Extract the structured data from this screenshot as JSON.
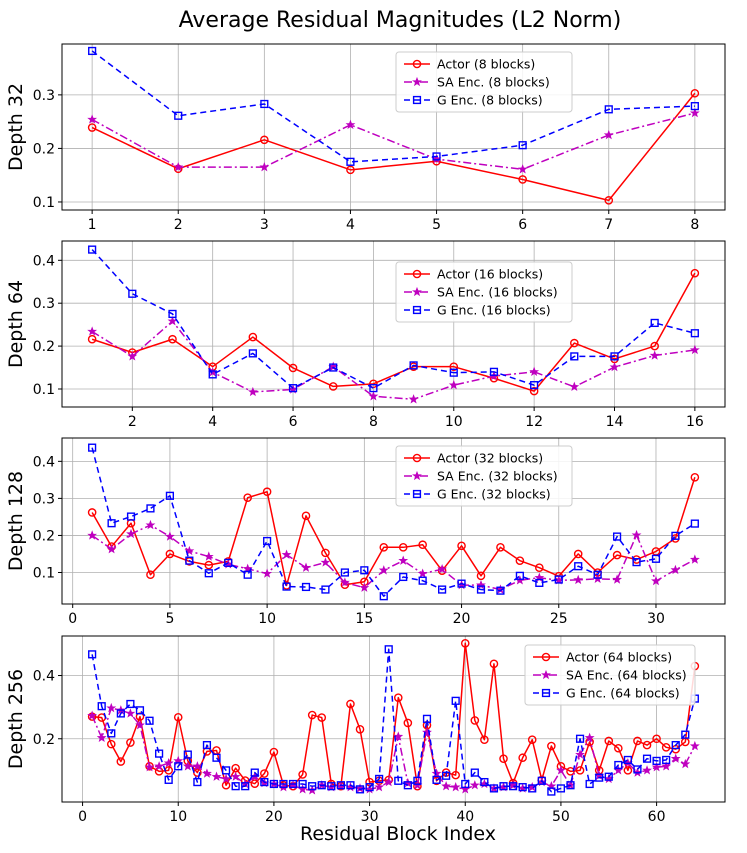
{
  "title": "Average Residual Magnitudes (L2 Norm)",
  "xlabel": "Residual Block Index",
  "colors": {
    "actor": "#ff0000",
    "sa": "#bf00bf",
    "g": "#0000ff",
    "grid": "#b0b0b0"
  },
  "chart_data": [
    {
      "type": "line",
      "ylabel": "Depth 32",
      "xlim": [
        0.65,
        8.35
      ],
      "ylim": [
        0.085,
        0.395
      ],
      "xticks": [
        1,
        2,
        3,
        4,
        5,
        6,
        7,
        8
      ],
      "yticks": [
        0.1,
        0.2,
        0.3
      ],
      "legend": "top-center",
      "series": [
        {
          "name": "Actor (8 blocks)",
          "x": [
            1,
            2,
            3,
            4,
            5,
            6,
            7,
            8
          ],
          "values": [
            0.239,
            0.162,
            0.216,
            0.16,
            0.176,
            0.142,
            0.103,
            0.303
          ]
        },
        {
          "name": "SA Enc. (8 blocks)",
          "x": [
            1,
            2,
            3,
            4,
            5,
            6,
            7,
            8
          ],
          "values": [
            0.254,
            0.165,
            0.165,
            0.244,
            0.18,
            0.161,
            0.225,
            0.266
          ]
        },
        {
          "name": "G Enc. (8 blocks)",
          "x": [
            1,
            2,
            3,
            4,
            5,
            6,
            7,
            8
          ],
          "values": [
            0.382,
            0.261,
            0.283,
            0.175,
            0.185,
            0.206,
            0.273,
            0.279
          ]
        }
      ]
    },
    {
      "type": "line",
      "ylabel": "Depth 64",
      "xlim": [
        0.25,
        16.75
      ],
      "ylim": [
        0.058,
        0.445
      ],
      "xticks": [
        2,
        4,
        6,
        8,
        10,
        12,
        14,
        16
      ],
      "yticks": [
        0.1,
        0.2,
        0.3,
        0.4
      ],
      "legend": "top-center",
      "series": [
        {
          "name": "Actor (16 blocks)",
          "x": [
            1,
            2,
            3,
            4,
            5,
            6,
            7,
            8,
            9,
            10,
            11,
            12,
            13,
            14,
            15,
            16
          ],
          "values": [
            0.216,
            0.185,
            0.216,
            0.152,
            0.221,
            0.149,
            0.106,
            0.112,
            0.152,
            0.152,
            0.125,
            0.095,
            0.207,
            0.17,
            0.2,
            0.37
          ]
        },
        {
          "name": "SA Enc. (16 blocks)",
          "x": [
            1,
            2,
            3,
            4,
            5,
            6,
            7,
            8,
            9,
            10,
            11,
            12,
            13,
            14,
            15,
            16
          ],
          "values": [
            0.234,
            0.176,
            0.258,
            0.139,
            0.093,
            0.099,
            0.152,
            0.083,
            0.076,
            0.109,
            0.13,
            0.14,
            0.105,
            0.151,
            0.178,
            0.191
          ]
        },
        {
          "name": "G Enc. (16 blocks)",
          "x": [
            1,
            2,
            3,
            4,
            5,
            6,
            7,
            8,
            9,
            10,
            11,
            12,
            13,
            14,
            15,
            16
          ],
          "values": [
            0.425,
            0.322,
            0.275,
            0.134,
            0.183,
            0.102,
            0.15,
            0.102,
            0.155,
            0.138,
            0.14,
            0.109,
            0.176,
            0.176,
            0.254,
            0.23
          ]
        }
      ]
    },
    {
      "type": "line",
      "ylabel": "Depth 128",
      "xlim": [
        -0.55,
        33.55
      ],
      "ylim": [
        0.015,
        0.463
      ],
      "xticks": [
        0,
        5,
        10,
        15,
        20,
        25,
        30
      ],
      "yticks": [
        0.1,
        0.2,
        0.3,
        0.4
      ],
      "legend": "top-center",
      "series": [
        {
          "name": "Actor (32 blocks)",
          "x": [
            1,
            2,
            3,
            4,
            5,
            6,
            7,
            8,
            9,
            10,
            11,
            12,
            13,
            14,
            15,
            16,
            17,
            18,
            19,
            20,
            21,
            22,
            23,
            24,
            25,
            26,
            27,
            28,
            29,
            30,
            31,
            32
          ],
          "values": [
            0.262,
            0.17,
            0.233,
            0.094,
            0.15,
            0.13,
            0.12,
            0.13,
            0.302,
            0.318,
            0.065,
            0.253,
            0.153,
            0.067,
            0.075,
            0.168,
            0.168,
            0.175,
            0.105,
            0.172,
            0.091,
            0.168,
            0.132,
            0.113,
            0.09,
            0.15,
            0.1,
            0.147,
            0.135,
            0.157,
            0.192,
            0.357
          ]
        },
        {
          "name": "SA Enc. (32 blocks)",
          "x": [
            1,
            2,
            3,
            4,
            5,
            6,
            7,
            8,
            9,
            10,
            11,
            12,
            13,
            14,
            15,
            16,
            17,
            18,
            19,
            20,
            21,
            22,
            23,
            24,
            25,
            26,
            27,
            28,
            29,
            30,
            31,
            32
          ],
          "values": [
            0.2,
            0.163,
            0.204,
            0.228,
            0.197,
            0.158,
            0.143,
            0.122,
            0.11,
            0.097,
            0.148,
            0.113,
            0.127,
            0.073,
            0.059,
            0.106,
            0.132,
            0.097,
            0.109,
            0.066,
            0.066,
            0.054,
            0.079,
            0.086,
            0.079,
            0.08,
            0.083,
            0.081,
            0.201,
            0.077,
            0.107,
            0.135
          ]
        },
        {
          "name": "G Enc. (32 blocks)",
          "x": [
            1,
            2,
            3,
            4,
            5,
            6,
            7,
            8,
            9,
            10,
            11,
            12,
            13,
            14,
            15,
            16,
            17,
            18,
            19,
            20,
            21,
            22,
            23,
            24,
            25,
            26,
            27,
            28,
            29,
            30,
            31,
            32
          ],
          "values": [
            0.437,
            0.233,
            0.251,
            0.273,
            0.307,
            0.132,
            0.098,
            0.126,
            0.094,
            0.185,
            0.062,
            0.061,
            0.054,
            0.1,
            0.106,
            0.036,
            0.088,
            0.078,
            0.054,
            0.07,
            0.054,
            0.051,
            0.091,
            0.072,
            0.081,
            0.117,
            0.094,
            0.197,
            0.128,
            0.137,
            0.199,
            0.232
          ]
        }
      ]
    },
    {
      "type": "line",
      "ylabel": "Depth 256",
      "xlim": [
        -2.15,
        67.15
      ],
      "ylim": [
        0.0,
        0.525
      ],
      "xticks": [
        0,
        10,
        20,
        30,
        40,
        50,
        60
      ],
      "yticks": [
        0.2,
        0.4
      ],
      "legend": "top-right",
      "series": [
        {
          "name": "Actor (64 blocks)",
          "x": [
            1,
            2,
            3,
            4,
            5,
            6,
            7,
            8,
            9,
            10,
            11,
            12,
            13,
            14,
            15,
            16,
            17,
            18,
            19,
            20,
            21,
            22,
            23,
            24,
            25,
            26,
            27,
            28,
            29,
            30,
            31,
            32,
            33,
            34,
            35,
            36,
            37,
            38,
            39,
            40,
            41,
            42,
            43,
            44,
            45,
            46,
            47,
            48,
            49,
            50,
            51,
            52,
            53,
            54,
            55,
            56,
            57,
            58,
            59,
            60,
            61,
            62,
            63,
            64
          ],
          "values": [
            0.27,
            0.267,
            0.183,
            0.128,
            0.188,
            0.27,
            0.113,
            0.097,
            0.1,
            0.268,
            0.13,
            0.093,
            0.16,
            0.163,
            0.053,
            0.107,
            0.068,
            0.058,
            0.09,
            0.158,
            0.053,
            0.05,
            0.087,
            0.275,
            0.267,
            0.057,
            0.05,
            0.31,
            0.23,
            0.063,
            0.067,
            0.07,
            0.33,
            0.25,
            0.05,
            0.243,
            0.067,
            0.093,
            0.085,
            0.502,
            0.258,
            0.197,
            0.437,
            0.137,
            0.06,
            0.14,
            0.197,
            0.07,
            0.177,
            0.113,
            0.097,
            0.1,
            0.19,
            0.1,
            0.193,
            0.17,
            0.1,
            0.193,
            0.18,
            0.2,
            0.173,
            0.167,
            0.19,
            0.43
          ]
        },
        {
          "name": "SA Enc. (64 blocks)",
          "x": [
            1,
            2,
            3,
            4,
            5,
            6,
            7,
            8,
            9,
            10,
            11,
            12,
            13,
            14,
            15,
            16,
            17,
            18,
            19,
            20,
            21,
            22,
            23,
            24,
            25,
            26,
            27,
            28,
            29,
            30,
            31,
            32,
            33,
            34,
            35,
            36,
            37,
            38,
            39,
            40,
            41,
            42,
            43,
            44,
            45,
            46,
            47,
            48,
            49,
            50,
            51,
            52,
            53,
            54,
            55,
            56,
            57,
            58,
            59,
            60,
            61,
            62,
            63,
            64
          ],
          "values": [
            0.273,
            0.203,
            0.297,
            0.29,
            0.28,
            0.243,
            0.11,
            0.113,
            0.123,
            0.13,
            0.113,
            0.113,
            0.09,
            0.08,
            0.073,
            0.08,
            0.057,
            0.08,
            0.06,
            0.057,
            0.047,
            0.053,
            0.04,
            0.037,
            0.053,
            0.047,
            0.05,
            0.047,
            0.043,
            0.04,
            0.047,
            0.063,
            0.207,
            0.06,
            0.053,
            0.22,
            0.09,
            0.05,
            0.047,
            0.04,
            0.053,
            0.057,
            0.043,
            0.047,
            0.053,
            0.043,
            0.047,
            0.063,
            0.05,
            0.1,
            0.053,
            0.15,
            0.203,
            0.083,
            0.073,
            0.1,
            0.123,
            0.093,
            0.1,
            0.11,
            0.113,
            0.137,
            0.12,
            0.177
          ]
        },
        {
          "name": "G Enc. (64 blocks)",
          "x": [
            1,
            2,
            3,
            4,
            5,
            6,
            7,
            8,
            9,
            10,
            11,
            12,
            13,
            14,
            15,
            16,
            17,
            18,
            19,
            20,
            21,
            22,
            23,
            24,
            25,
            26,
            27,
            28,
            29,
            30,
            31,
            32,
            33,
            34,
            35,
            36,
            37,
            38,
            39,
            40,
            41,
            42,
            43,
            44,
            45,
            46,
            47,
            48,
            49,
            50,
            51,
            52,
            53,
            54,
            55,
            56,
            57,
            58,
            59,
            60,
            61,
            62,
            63,
            64
          ],
          "values": [
            0.467,
            0.303,
            0.217,
            0.28,
            0.31,
            0.29,
            0.257,
            0.153,
            0.07,
            0.113,
            0.15,
            0.063,
            0.18,
            0.14,
            0.1,
            0.05,
            0.05,
            0.093,
            0.063,
            0.057,
            0.057,
            0.057,
            0.057,
            0.05,
            0.053,
            0.05,
            0.053,
            0.053,
            0.04,
            0.047,
            0.073,
            0.483,
            0.067,
            0.053,
            0.067,
            0.263,
            0.07,
            0.083,
            0.32,
            0.057,
            0.093,
            0.063,
            0.043,
            0.05,
            0.05,
            0.047,
            0.043,
            0.067,
            0.033,
            0.043,
            0.053,
            0.2,
            0.057,
            0.077,
            0.08,
            0.117,
            0.133,
            0.103,
            0.137,
            0.13,
            0.133,
            0.18,
            0.213,
            0.327
          ]
        }
      ]
    }
  ]
}
